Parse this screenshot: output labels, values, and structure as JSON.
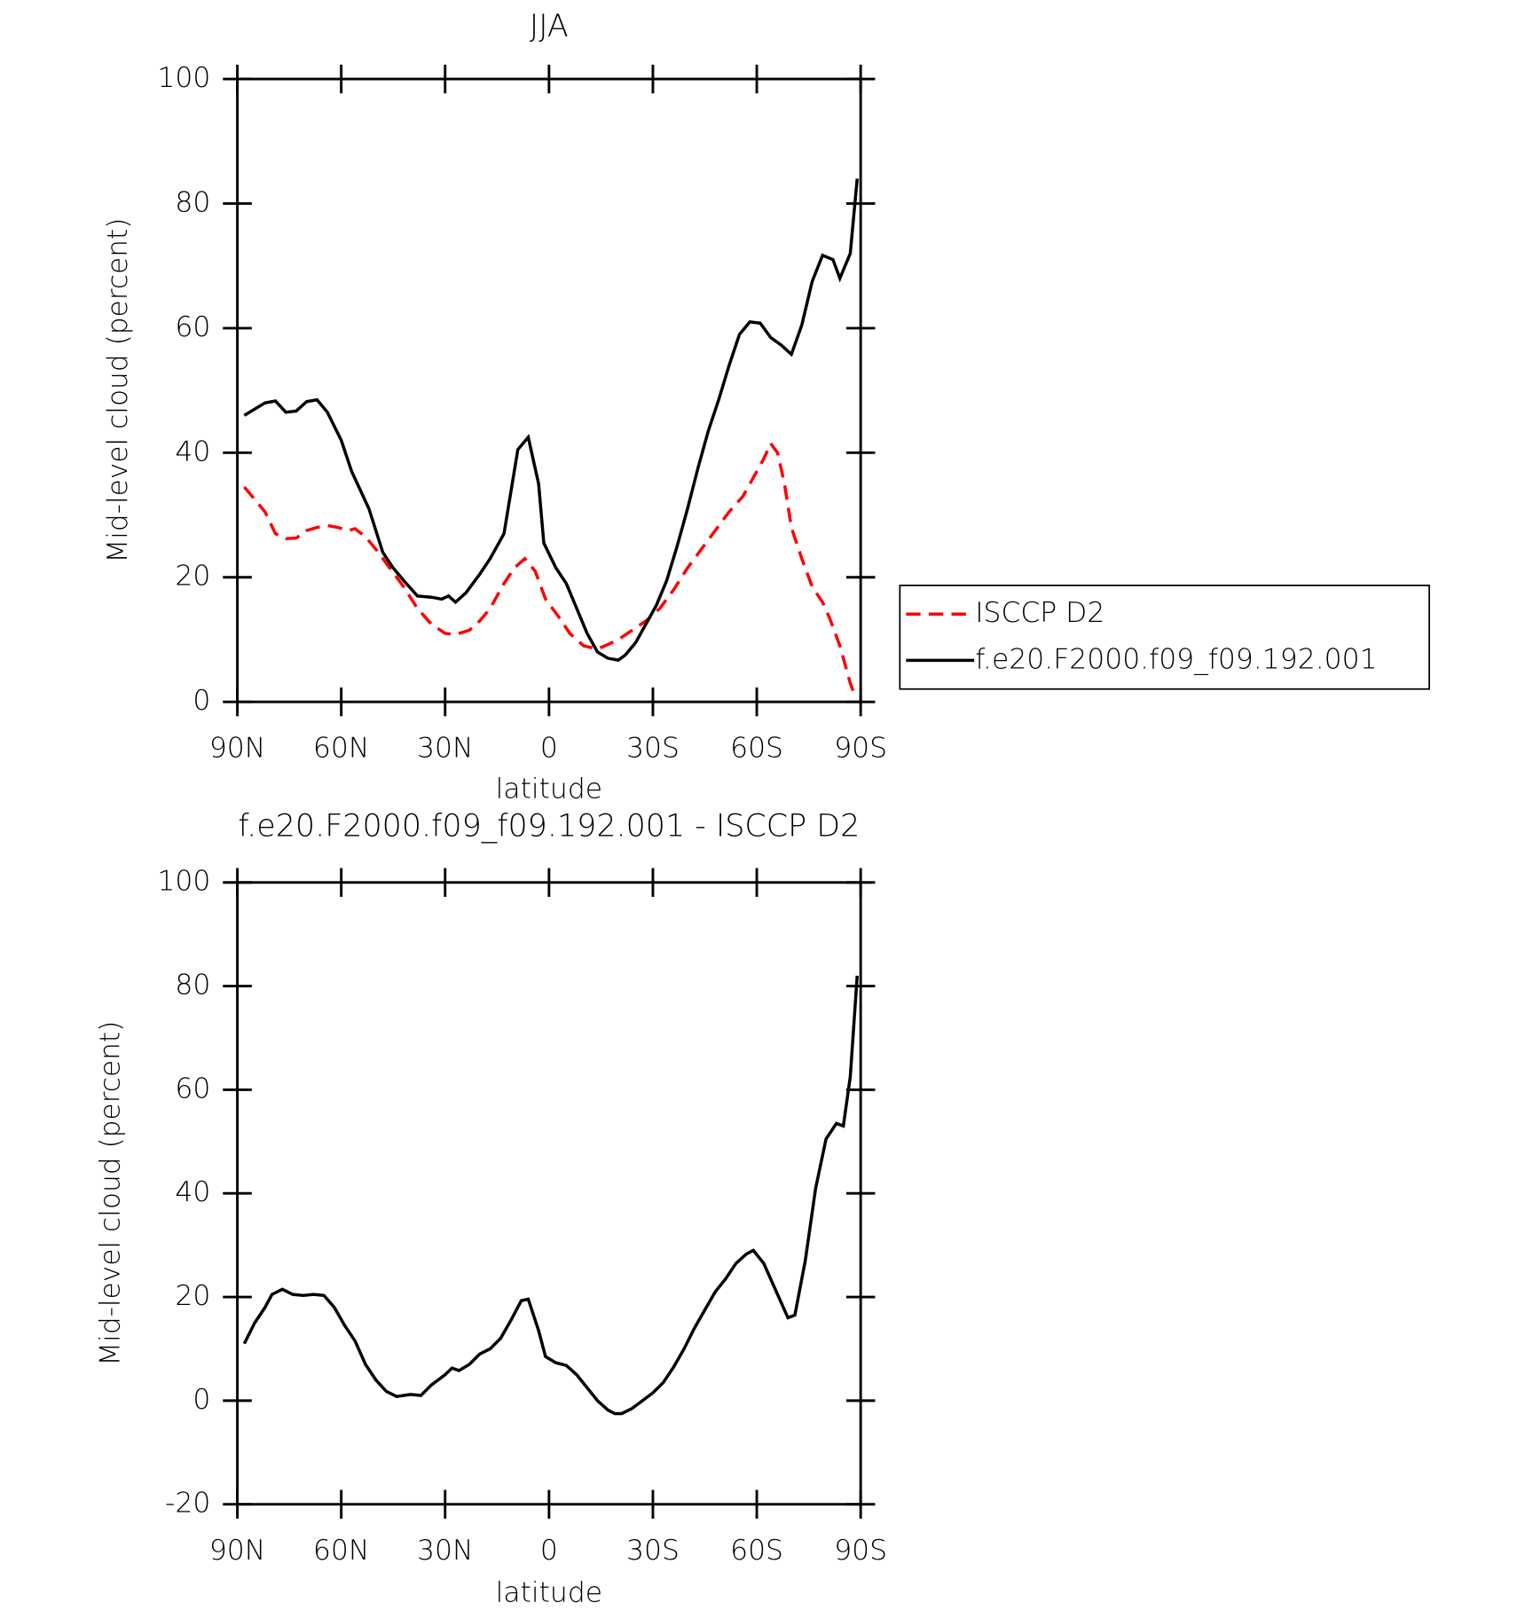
{
  "chart_data": [
    {
      "type": "line",
      "title": "JJA",
      "xlabel": "latitude",
      "ylabel": "Mid-level cloud (percent)",
      "xlim": [
        90,
        -90
      ],
      "xticks": [
        {
          "value": 90,
          "label": "90N"
        },
        {
          "value": 60,
          "label": "60N"
        },
        {
          "value": 30,
          "label": "30N"
        },
        0,
        {
          "value": -30,
          "label": "30S"
        },
        {
          "value": -60,
          "label": "60S"
        },
        {
          "value": -90,
          "label": "90S"
        }
      ],
      "ylim": [
        0,
        100
      ],
      "yticks": [
        0,
        20,
        40,
        60,
        80,
        100
      ],
      "legend": "right",
      "series": [
        {
          "name": "ISCCP D2",
          "color": "#ff0000",
          "line_style": "dashed",
          "x": [
            88,
            85,
            82,
            79,
            76,
            73,
            70,
            67,
            64,
            61,
            58,
            56,
            53,
            50,
            46,
            42,
            38,
            34,
            30,
            27,
            23,
            20,
            17,
            13,
            10,
            7,
            4,
            1,
            -3,
            -6,
            -10,
            -14,
            -17,
            -20,
            -24,
            -28,
            -32,
            -36,
            -40,
            -44,
            -48,
            -52,
            -56,
            -59,
            -62,
            -64,
            -66,
            -68,
            -70,
            -73,
            -76,
            -79,
            -81,
            -84,
            -87,
            -88
          ],
          "values": [
            34.5,
            32.5,
            30.5,
            27,
            26.2,
            26.3,
            27.5,
            28,
            28.3,
            28,
            27.5,
            27.8,
            26.5,
            24.5,
            21.5,
            18.5,
            15,
            12.5,
            11,
            10.8,
            11.5,
            13,
            15,
            19,
            21.5,
            23,
            21,
            16.5,
            13.5,
            11,
            9,
            8.5,
            9.2,
            10,
            11.5,
            13,
            15,
            18,
            21.5,
            24.5,
            27.5,
            30.5,
            33,
            36,
            39,
            41.5,
            40,
            35,
            28,
            23,
            18.5,
            16,
            13.5,
            9,
            3,
            1.5
          ]
        },
        {
          "name": "f.e20.F2000.f09_f09.192.001",
          "color": "#000000",
          "line_style": "solid",
          "x": [
            88,
            82,
            79,
            76,
            73,
            70,
            67,
            64,
            60,
            57,
            52,
            48,
            45,
            42,
            38,
            34,
            31,
            29,
            27,
            24,
            20,
            17,
            13,
            9,
            6,
            3,
            1.5,
            -2,
            -5,
            -8,
            -11,
            -14,
            -17,
            -20,
            -22,
            -25,
            -28,
            -31,
            -34,
            -37,
            -40,
            -43,
            -46,
            -49,
            -52,
            -55,
            -58,
            -61,
            -64,
            -67,
            -70,
            -73,
            -76,
            -79,
            -82,
            -84,
            -87,
            -89
          ],
          "values": [
            46,
            48,
            48.3,
            46.5,
            46.7,
            48.2,
            48.5,
            46.5,
            42,
            37,
            31,
            24,
            21.5,
            19.5,
            17,
            16.8,
            16.5,
            17,
            16,
            17.5,
            20.5,
            23,
            27,
            40.5,
            42.5,
            35,
            25.5,
            21.5,
            19,
            15,
            11,
            8,
            7,
            6.7,
            7.5,
            9.5,
            12.5,
            15.5,
            19.5,
            25,
            31,
            37.5,
            43.5,
            48.5,
            54,
            59,
            61,
            60.8,
            58.5,
            57.3,
            55.8,
            60.5,
            67.5,
            71.7,
            71,
            68,
            72,
            84
          ]
        }
      ]
    },
    {
      "type": "line",
      "title": "f.e20.F2000.f09_f09.192.001 - ISCCP D2",
      "xlabel": "latitude",
      "ylabel": "Mid-level cloud (percent)",
      "xlim": [
        90,
        -90
      ],
      "xticks": [
        {
          "value": 90,
          "label": "90N"
        },
        {
          "value": 60,
          "label": "60N"
        },
        {
          "value": 30,
          "label": "30N"
        },
        0,
        {
          "value": -30,
          "label": "30S"
        },
        {
          "value": -60,
          "label": "60S"
        },
        {
          "value": -90,
          "label": "90S"
        }
      ],
      "ylim": [
        -20,
        100
      ],
      "yticks": [
        -20,
        0,
        20,
        40,
        60,
        80,
        100
      ],
      "series": [
        {
          "color": "#000000",
          "line_style": "solid",
          "x": [
            88,
            85,
            82,
            80,
            77,
            74,
            71,
            68,
            65,
            62,
            59,
            56,
            53,
            50,
            47,
            44,
            40,
            37,
            34,
            30,
            28,
            26,
            23,
            20,
            17,
            14,
            11,
            8,
            6,
            3,
            1,
            -2,
            -5,
            -8,
            -11,
            -14,
            -17,
            -19,
            -21,
            -24,
            -27,
            -30,
            -33,
            -36,
            -39,
            -42,
            -45,
            -48,
            -51,
            -54,
            -57,
            -59,
            -62,
            -65,
            -69,
            -71,
            -74,
            -77,
            -80,
            -83,
            -85,
            -87,
            -89
          ],
          "values": [
            11,
            15,
            18,
            20.5,
            21.5,
            20.5,
            20.3,
            20.5,
            20.3,
            18,
            14.5,
            11.5,
            7,
            4,
            1.8,
            0.8,
            1.2,
            1,
            3,
            5,
            6.3,
            5.8,
            7,
            9,
            10,
            12,
            15.5,
            19.3,
            19.6,
            13.5,
            8.5,
            7.3,
            6.8,
            5,
            2.5,
            0,
            -1.8,
            -2.5,
            -2.5,
            -1.5,
            0,
            1.5,
            3.5,
            6.5,
            10,
            14,
            17.5,
            21,
            23.5,
            26.5,
            28.3,
            29,
            26.5,
            22,
            16,
            16.5,
            27,
            41,
            50.5,
            53.5,
            53,
            62.5,
            82
          ]
        }
      ]
    }
  ]
}
